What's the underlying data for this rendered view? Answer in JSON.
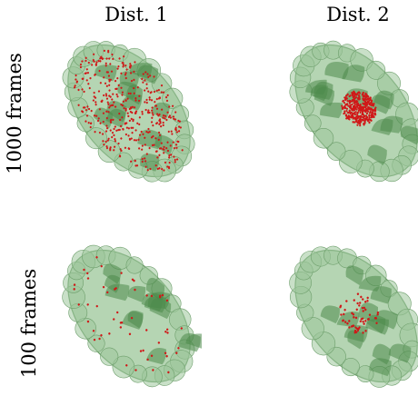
{
  "columns": [
    {
      "label": "Dist. 1"
    },
    {
      "label": "Dist. 2"
    }
  ],
  "rows": [
    {
      "label": "1000 frames"
    },
    {
      "label": "100 frames"
    }
  ],
  "panels": [
    {
      "row": 0,
      "col": 0,
      "distribution": "spread",
      "point_count": "many"
    },
    {
      "row": 0,
      "col": 1,
      "distribution": "clustered",
      "point_count": "many"
    },
    {
      "row": 1,
      "col": 0,
      "distribution": "spread",
      "point_count": "few"
    },
    {
      "row": 1,
      "col": 1,
      "distribution": "clustered",
      "point_count": "few"
    }
  ],
  "colors": {
    "surface_fill": "#9cc79a",
    "surface_edge": "#6d9e6b",
    "ribbon": "#4c8a4a",
    "points": "#d01818"
  }
}
